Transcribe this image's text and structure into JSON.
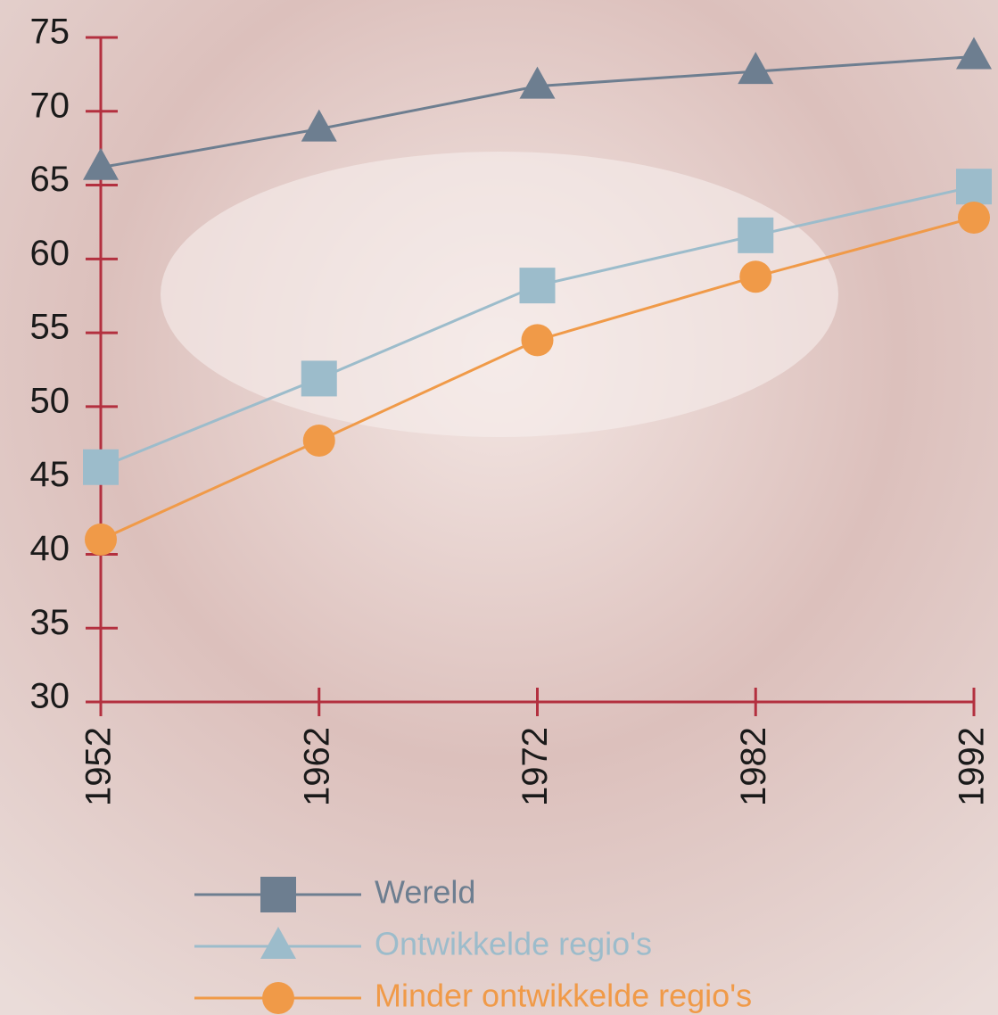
{
  "chart_data": {
    "type": "line",
    "x": [
      1952,
      1962,
      1972,
      1982,
      1992
    ],
    "xlim": [
      1952,
      1992
    ],
    "xticks": [
      1952,
      1962,
      1972,
      1982,
      1992
    ],
    "ylim": [
      30,
      75
    ],
    "yticks": [
      30,
      35,
      40,
      45,
      50,
      55,
      60,
      65,
      70,
      75
    ],
    "axis_color": "#b3303f",
    "series": [
      {
        "name": "Wereld",
        "color": "#6d7e90",
        "marker": "triangle",
        "legend_marker": "square",
        "values": [
          66.2,
          68.8,
          71.7,
          72.7,
          73.7
        ]
      },
      {
        "name": "Ontwikkelde regio's",
        "color": "#9cbccb",
        "marker": "square",
        "legend_marker": "triangle",
        "values": [
          45.9,
          51.9,
          58.2,
          61.6,
          64.9
        ]
      },
      {
        "name": "Minder ontwikkelde regio's",
        "color": "#f09a48",
        "marker": "circle",
        "legend_marker": "circle",
        "values": [
          41.0,
          47.7,
          54.5,
          58.8,
          62.8
        ]
      }
    ]
  }
}
